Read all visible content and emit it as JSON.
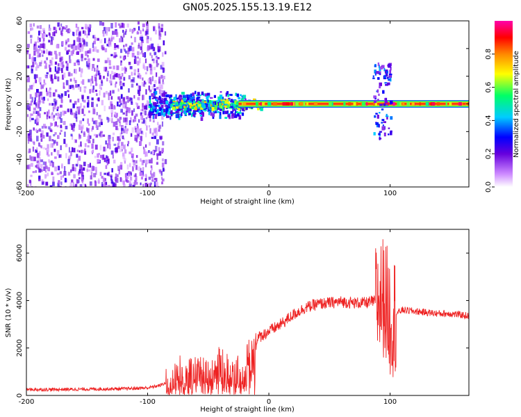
{
  "title": "GN05.2025.155.13.19.E12",
  "chart_data": [
    {
      "type": "heatmap",
      "title": "GN05.2025.155.13.19.E12",
      "xlabel": "Height of straight line (km)",
      "ylabel": "Frequency (Hz)",
      "xlim": [
        -200,
        165
      ],
      "ylim": [
        -60,
        60
      ],
      "x_ticks": [
        "-200",
        "-100",
        "0",
        "100"
      ],
      "y_ticks": [
        "60",
        "40",
        "20",
        "0",
        "-20",
        "-40",
        "-60"
      ],
      "colorbar": {
        "label": "Normalized spectral amplitude",
        "range": [
          0,
          1
        ],
        "ticks": [
          "0.0",
          "0.2",
          "0.4",
          "0.6",
          "0.8"
        ],
        "colors": [
          "#ffffff",
          "#cc88ff",
          "#6600dd",
          "#0000ff",
          "#00ccff",
          "#00ff66",
          "#ffff00",
          "#ff8800",
          "#ff0000",
          "#ff00aa"
        ]
      },
      "regions": [
        {
          "x_range": [
            -200,
            -86
          ],
          "freq_range": [
            -60,
            60
          ],
          "amplitude": 0.15,
          "note": "broadband noise"
        },
        {
          "x_range": [
            -100,
            -20
          ],
          "freq_range": [
            -10,
            10
          ],
          "amplitude": 0.3
        },
        {
          "x_range": [
            -80,
            -5
          ],
          "freq_range": [
            -3,
            4
          ],
          "amplitude": 0.45
        },
        {
          "x_range": [
            -25,
            165
          ],
          "freq_range": [
            -1.5,
            1.5
          ],
          "amplitude": 0.95,
          "note": "carrier line"
        },
        {
          "x_range": [
            85,
            100
          ],
          "freq_range": [
            -25,
            30
          ],
          "amplitude": 0.25,
          "note": "dispersion feature"
        }
      ]
    },
    {
      "type": "line",
      "xlabel": "Height of straight line (km)",
      "ylabel": "SNR (10 * v/v)",
      "xlim": [
        -200,
        165
      ],
      "ylim": [
        0,
        7000
      ],
      "x_ticks": [
        "-200",
        "-100",
        "0",
        "100"
      ],
      "y_ticks": [
        "6000",
        "4000",
        "2000",
        "0"
      ],
      "color": "#ee2222",
      "x": [
        -200,
        -180,
        -160,
        -140,
        -120,
        -100,
        -90,
        -80,
        -75,
        -70,
        -60,
        -50,
        -40,
        -30,
        -20,
        -10,
        0,
        10,
        20,
        30,
        40,
        50,
        60,
        70,
        80,
        90,
        95,
        100,
        110,
        120,
        130,
        140,
        150,
        165
      ],
      "values": [
        250,
        250,
        260,
        270,
        280,
        320,
        420,
        650,
        1200,
        900,
        1100,
        1000,
        1500,
        900,
        1400,
        2400,
        2700,
        3000,
        3400,
        3700,
        3850,
        3900,
        3950,
        3900,
        3900,
        4000,
        4200,
        3300,
        3600,
        3550,
        3500,
        3450,
        3450,
        3350
      ]
    }
  ]
}
